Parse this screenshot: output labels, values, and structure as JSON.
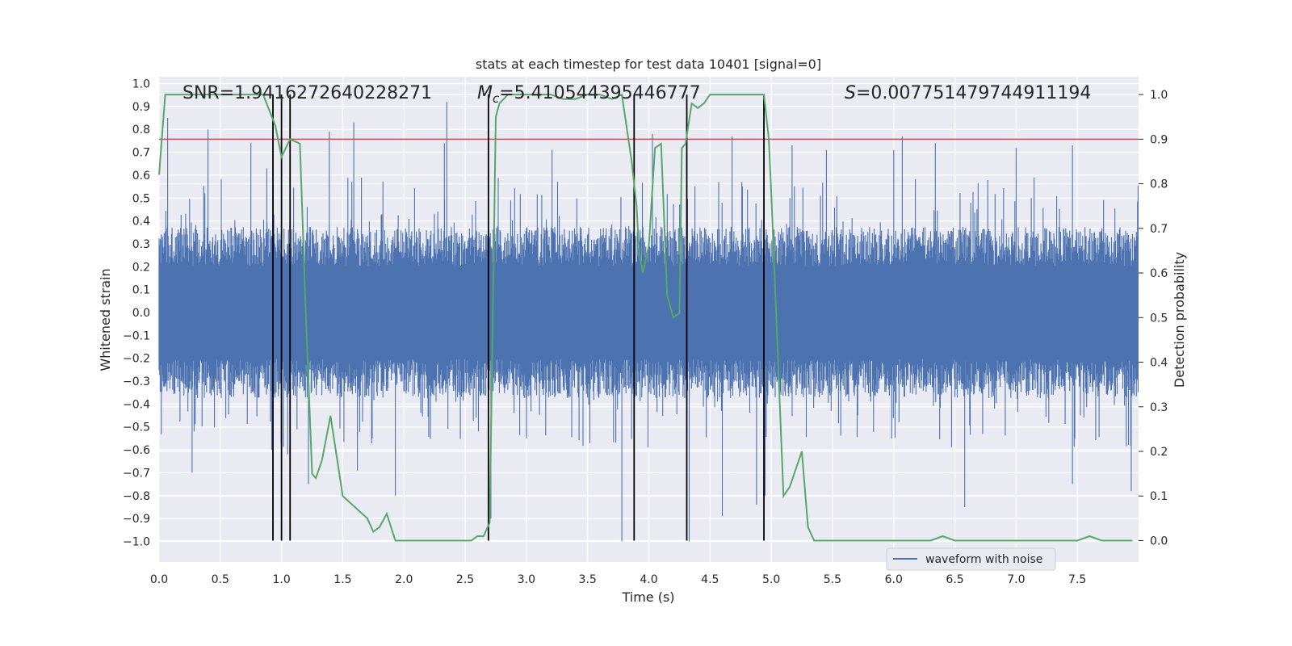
{
  "chart_data": {
    "type": "line",
    "title": "stats at each timestep for test data 10401 [signal=0]",
    "xlabel": "Time (s)",
    "ylabel_left": "Whitened strain",
    "ylabel_right": "Detection probability",
    "xlim": [
      0.0,
      8.0
    ],
    "ylim_left": [
      -1.09,
      1.03
    ],
    "ylim_right": [
      -0.048,
      1.04
    ],
    "x_ticks": [
      "0.0",
      "0.5",
      "1.0",
      "1.5",
      "2.0",
      "2.5",
      "3.0",
      "3.5",
      "4.0",
      "4.5",
      "5.0",
      "5.5",
      "6.0",
      "6.5",
      "7.0",
      "7.5"
    ],
    "y_left_ticks": [
      "−1.0",
      "−0.9",
      "−0.8",
      "−0.7",
      "−0.6",
      "−0.5",
      "−0.4",
      "−0.3",
      "−0.2",
      "−0.1",
      "0.0",
      "0.1",
      "0.2",
      "0.3",
      "0.4",
      "0.5",
      "0.6",
      "0.7",
      "0.8",
      "0.9",
      "1.0"
    ],
    "y_right_ticks": [
      "0.0",
      "0.1",
      "0.2",
      "0.3",
      "0.4",
      "0.5",
      "0.6",
      "0.7",
      "0.8",
      "0.9",
      "1.0"
    ],
    "grid": true,
    "legend": {
      "location": "lower-right",
      "entries": [
        "waveform with noise"
      ]
    },
    "annotations": {
      "snr": "SNR=1.9416272640228271",
      "mc_symbol": "M",
      "mc_sub": "c",
      "mc_value": "=5.410544395446777",
      "s_symbol": "S",
      "s_value": "=0.007751479744911194"
    },
    "threshold_right": 0.9,
    "vertical_lines_x": [
      0.93,
      1.0,
      1.07,
      2.69,
      3.88,
      4.31,
      4.94
    ],
    "series": [
      {
        "name": "waveform with noise",
        "axis": "left",
        "color": "#4c72b0",
        "style": "noise",
        "base_envelope": 0.34,
        "x_range": [
          0.0,
          8.0
        ],
        "spikes_top": [
          [
            0.07,
            0.85
          ],
          [
            0.4,
            0.8
          ],
          [
            0.75,
            0.74
          ],
          [
            0.88,
            0.63
          ],
          [
            1.07,
            0.91
          ],
          [
            1.39,
            0.79
          ],
          [
            1.59,
            0.83
          ],
          [
            2.33,
            0.74
          ],
          [
            2.35,
            0.92
          ],
          [
            3.21,
            0.71
          ],
          [
            4.03,
            0.78
          ],
          [
            4.68,
            0.77
          ],
          [
            5.17,
            0.73
          ],
          [
            5.45,
            0.71
          ],
          [
            6.0,
            0.71
          ],
          [
            6.07,
            0.77
          ],
          [
            6.34,
            0.74
          ],
          [
            7.0,
            0.72
          ],
          [
            7.46,
            0.73
          ]
        ],
        "spikes_bottom": [
          [
            0.27,
            -0.7
          ],
          [
            0.92,
            -0.6
          ],
          [
            1.05,
            -0.62
          ],
          [
            1.22,
            -0.75
          ],
          [
            1.62,
            -0.69
          ],
          [
            1.93,
            -0.8
          ],
          [
            2.71,
            -0.9
          ],
          [
            3.78,
            -1.0
          ],
          [
            3.88,
            -0.78
          ],
          [
            4.33,
            -1.0
          ],
          [
            4.6,
            -0.89
          ],
          [
            4.88,
            -0.84
          ],
          [
            4.95,
            -0.8
          ],
          [
            6.58,
            -0.85
          ],
          [
            7.46,
            -0.75
          ],
          [
            7.94,
            -0.78
          ]
        ]
      },
      {
        "name": "",
        "axis": "right",
        "color": "#55a868",
        "x": [
          0.0,
          0.05,
          0.1,
          0.2,
          0.3,
          0.5,
          0.7,
          0.85,
          0.95,
          1.0,
          1.07,
          1.15,
          1.2,
          1.25,
          1.28,
          1.33,
          1.4,
          1.5,
          1.62,
          1.7,
          1.75,
          1.8,
          1.86,
          1.93,
          2.0,
          2.2,
          2.4,
          2.55,
          2.6,
          2.65,
          2.7,
          2.75,
          2.78,
          2.85,
          3.0,
          3.2,
          3.3,
          3.4,
          3.5,
          3.6,
          3.7,
          3.78,
          3.86,
          3.9,
          3.92,
          3.95,
          4.0,
          4.05,
          4.1,
          4.15,
          4.2,
          4.25,
          4.27,
          4.3,
          4.35,
          4.4,
          4.45,
          4.5,
          4.6,
          4.7,
          4.8,
          4.9,
          4.94,
          4.98,
          5.0,
          5.1,
          5.15,
          5.25,
          5.3,
          5.35,
          5.45,
          5.6,
          5.8,
          5.9,
          6.0,
          6.1,
          6.2,
          6.3,
          6.4,
          6.5,
          7.0,
          7.5,
          7.6,
          7.7,
          7.95
        ],
        "y": [
          0.82,
          1.0,
          1.0,
          1.0,
          1.0,
          1.0,
          1.0,
          1.0,
          0.93,
          0.86,
          0.9,
          0.89,
          0.5,
          0.15,
          0.14,
          0.18,
          0.28,
          0.1,
          0.07,
          0.05,
          0.02,
          0.03,
          0.06,
          0.0,
          0.0,
          0.0,
          0.0,
          0.0,
          0.01,
          0.01,
          0.04,
          0.95,
          0.98,
          1.0,
          1.0,
          1.0,
          0.99,
          0.99,
          1.0,
          1.0,
          0.99,
          1.0,
          0.85,
          0.75,
          0.65,
          0.6,
          0.66,
          0.88,
          0.89,
          0.55,
          0.5,
          0.51,
          0.88,
          0.89,
          0.98,
          0.97,
          0.98,
          1.0,
          1.0,
          1.0,
          1.0,
          1.0,
          1.0,
          0.9,
          0.78,
          0.1,
          0.12,
          0.2,
          0.03,
          0.0,
          0.0,
          0.0,
          0.0,
          0.0,
          0.0,
          0.0,
          0.0,
          0.0,
          0.01,
          0.0,
          0.0,
          0.0,
          0.01,
          0.0,
          0.0
        ]
      }
    ]
  }
}
